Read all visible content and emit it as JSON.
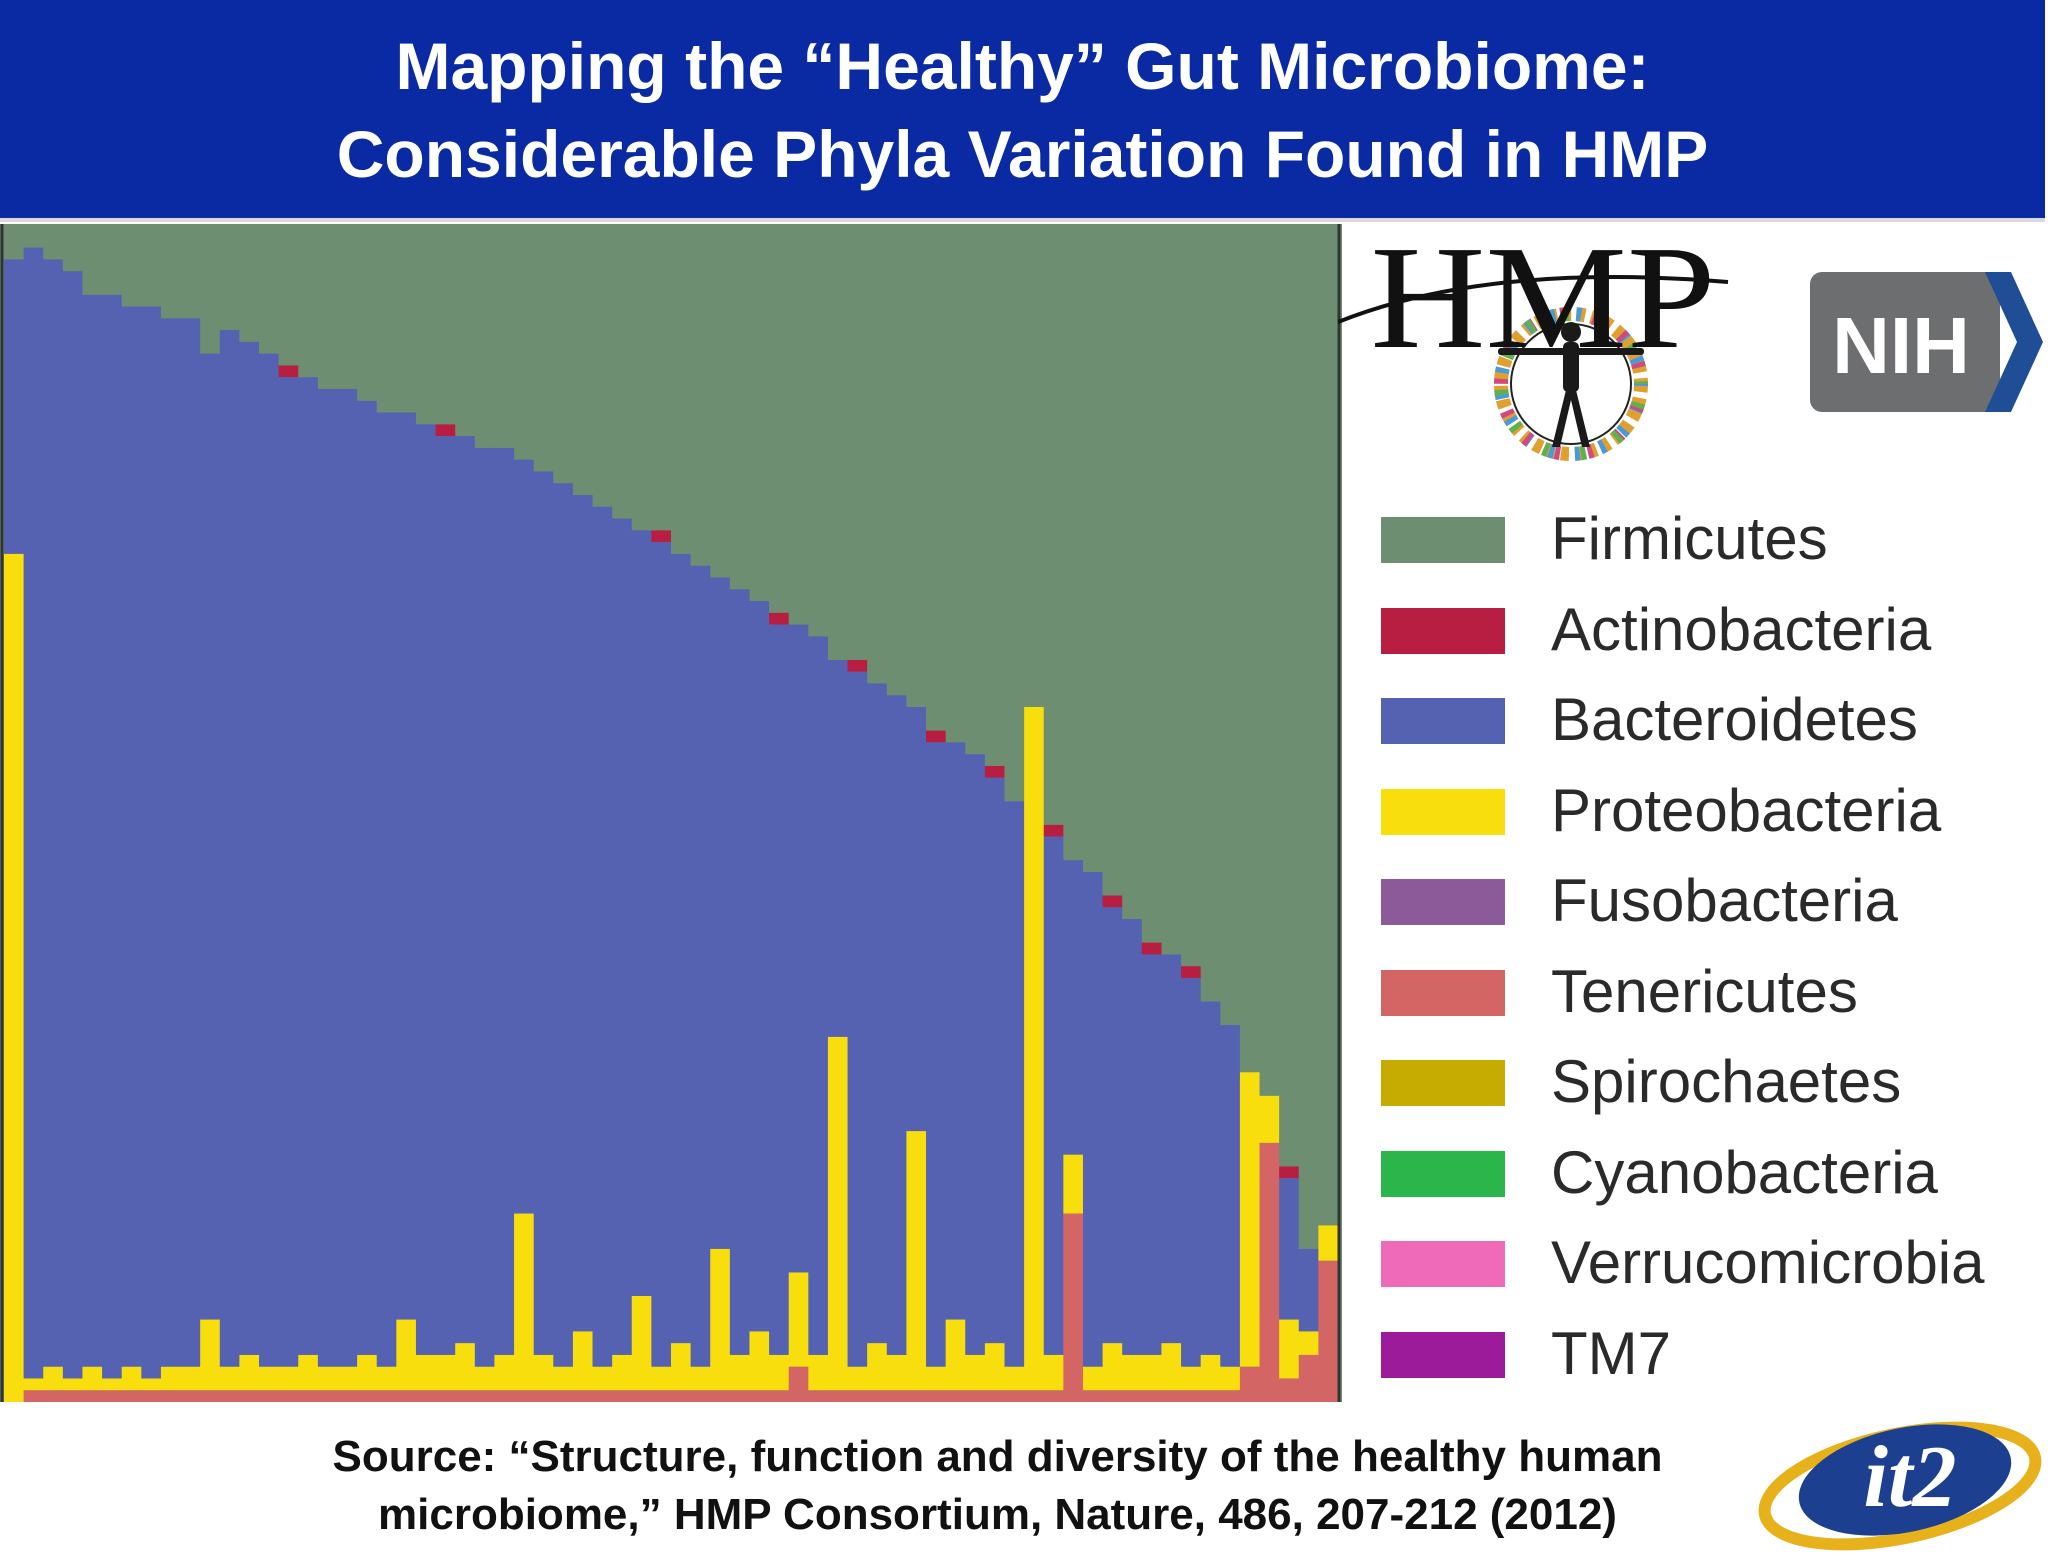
{
  "header": {
    "title_line1": "Mapping the “Healthy” Gut Microbiome:",
    "title_line2": "Considerable Phyla Variation Found in HMP"
  },
  "colors": {
    "banner": "#0a2aa3",
    "Firmicutes": "#6e8e72",
    "Actinobacteria": "#b81d42",
    "Bacteroidetes": "#5562b2",
    "Proteobacteria": "#f7de0c",
    "Fusobacteria": "#8c5a98",
    "Tenericutes": "#d46565",
    "Spirochaetes": "#c6ac00",
    "Cyanobacteria": "#2bb54a",
    "Verrucomicrobia": "#f06aba",
    "TM7": "#9b1b9a"
  },
  "logos": {
    "hmp": "HMP",
    "nih": "NIH",
    "it2": "it2"
  },
  "legend": [
    {
      "name": "Firmicutes",
      "color": "#6e8e72"
    },
    {
      "name": "Actinobacteria",
      "color": "#b81d42"
    },
    {
      "name": "Bacteroidetes",
      "color": "#5562b2"
    },
    {
      "name": "Proteobacteria",
      "color": "#f7de0c"
    },
    {
      "name": "Fusobacteria",
      "color": "#8c5a98"
    },
    {
      "name": "Tenericutes",
      "color": "#d46565"
    },
    {
      "name": "Spirochaetes",
      "color": "#c6ac00"
    },
    {
      "name": "Cyanobacteria",
      "color": "#2bb54a"
    },
    {
      "name": "Verrucomicrobia",
      "color": "#f06aba"
    },
    {
      "name": "TM7",
      "color": "#9b1b9a"
    }
  ],
  "chart_data": {
    "type": "bar",
    "stacked": true,
    "normalized": true,
    "legend_position": "right",
    "axes_visible": false,
    "series_order_bottom_to_top": [
      "Tenericutes",
      "Proteobacteria",
      "Bacteroidetes",
      "Actinobacteria",
      "Firmicutes"
    ],
    "samples": [
      {
        "Tenericutes": 0.0,
        "Proteobacteria": 0.72,
        "Bacteroidetes": 0.25,
        "Actinobacteria": 0.0,
        "Firmicutes": 0.03
      },
      {
        "Tenericutes": 0.01,
        "Proteobacteria": 0.01,
        "Bacteroidetes": 0.96,
        "Actinobacteria": 0.0,
        "Firmicutes": 0.02
      },
      {
        "Tenericutes": 0.01,
        "Proteobacteria": 0.02,
        "Bacteroidetes": 0.94,
        "Actinobacteria": 0.0,
        "Firmicutes": 0.03
      },
      {
        "Tenericutes": 0.01,
        "Proteobacteria": 0.01,
        "Bacteroidetes": 0.94,
        "Actinobacteria": 0.0,
        "Firmicutes": 0.04
      },
      {
        "Tenericutes": 0.01,
        "Proteobacteria": 0.02,
        "Bacteroidetes": 0.91,
        "Actinobacteria": 0.0,
        "Firmicutes": 0.06
      },
      {
        "Tenericutes": 0.01,
        "Proteobacteria": 0.01,
        "Bacteroidetes": 0.92,
        "Actinobacteria": 0.0,
        "Firmicutes": 0.06
      },
      {
        "Tenericutes": 0.01,
        "Proteobacteria": 0.02,
        "Bacteroidetes": 0.9,
        "Actinobacteria": 0.0,
        "Firmicutes": 0.07
      },
      {
        "Tenericutes": 0.01,
        "Proteobacteria": 0.01,
        "Bacteroidetes": 0.91,
        "Actinobacteria": 0.0,
        "Firmicutes": 0.07
      },
      {
        "Tenericutes": 0.01,
        "Proteobacteria": 0.02,
        "Bacteroidetes": 0.89,
        "Actinobacteria": 0.0,
        "Firmicutes": 0.08
      },
      {
        "Tenericutes": 0.01,
        "Proteobacteria": 0.02,
        "Bacteroidetes": 0.89,
        "Actinobacteria": 0.0,
        "Firmicutes": 0.08
      },
      {
        "Tenericutes": 0.01,
        "Proteobacteria": 0.06,
        "Bacteroidetes": 0.82,
        "Actinobacteria": 0.0,
        "Firmicutes": 0.11
      },
      {
        "Tenericutes": 0.01,
        "Proteobacteria": 0.02,
        "Bacteroidetes": 0.88,
        "Actinobacteria": 0.0,
        "Firmicutes": 0.09
      },
      {
        "Tenericutes": 0.01,
        "Proteobacteria": 0.03,
        "Bacteroidetes": 0.86,
        "Actinobacteria": 0.0,
        "Firmicutes": 0.1
      },
      {
        "Tenericutes": 0.01,
        "Proteobacteria": 0.02,
        "Bacteroidetes": 0.86,
        "Actinobacteria": 0.0,
        "Firmicutes": 0.11
      },
      {
        "Tenericutes": 0.01,
        "Proteobacteria": 0.02,
        "Bacteroidetes": 0.84,
        "Actinobacteria": 0.01,
        "Firmicutes": 0.12
      },
      {
        "Tenericutes": 0.01,
        "Proteobacteria": 0.03,
        "Bacteroidetes": 0.83,
        "Actinobacteria": 0.0,
        "Firmicutes": 0.13
      },
      {
        "Tenericutes": 0.01,
        "Proteobacteria": 0.02,
        "Bacteroidetes": 0.83,
        "Actinobacteria": 0.0,
        "Firmicutes": 0.14
      },
      {
        "Tenericutes": 0.01,
        "Proteobacteria": 0.02,
        "Bacteroidetes": 0.83,
        "Actinobacteria": 0.0,
        "Firmicutes": 0.14
      },
      {
        "Tenericutes": 0.01,
        "Proteobacteria": 0.03,
        "Bacteroidetes": 0.81,
        "Actinobacteria": 0.0,
        "Firmicutes": 0.15
      },
      {
        "Tenericutes": 0.01,
        "Proteobacteria": 0.02,
        "Bacteroidetes": 0.81,
        "Actinobacteria": 0.0,
        "Firmicutes": 0.16
      },
      {
        "Tenericutes": 0.01,
        "Proteobacteria": 0.06,
        "Bacteroidetes": 0.77,
        "Actinobacteria": 0.0,
        "Firmicutes": 0.16
      },
      {
        "Tenericutes": 0.01,
        "Proteobacteria": 0.03,
        "Bacteroidetes": 0.79,
        "Actinobacteria": 0.0,
        "Firmicutes": 0.17
      },
      {
        "Tenericutes": 0.01,
        "Proteobacteria": 0.03,
        "Bacteroidetes": 0.78,
        "Actinobacteria": 0.01,
        "Firmicutes": 0.17
      },
      {
        "Tenericutes": 0.01,
        "Proteobacteria": 0.04,
        "Bacteroidetes": 0.77,
        "Actinobacteria": 0.0,
        "Firmicutes": 0.18
      },
      {
        "Tenericutes": 0.01,
        "Proteobacteria": 0.02,
        "Bacteroidetes": 0.78,
        "Actinobacteria": 0.0,
        "Firmicutes": 0.19
      },
      {
        "Tenericutes": 0.01,
        "Proteobacteria": 0.03,
        "Bacteroidetes": 0.77,
        "Actinobacteria": 0.0,
        "Firmicutes": 0.19
      },
      {
        "Tenericutes": 0.01,
        "Proteobacteria": 0.15,
        "Bacteroidetes": 0.64,
        "Actinobacteria": 0.0,
        "Firmicutes": 0.2
      },
      {
        "Tenericutes": 0.01,
        "Proteobacteria": 0.03,
        "Bacteroidetes": 0.75,
        "Actinobacteria": 0.0,
        "Firmicutes": 0.21
      },
      {
        "Tenericutes": 0.01,
        "Proteobacteria": 0.02,
        "Bacteroidetes": 0.75,
        "Actinobacteria": 0.0,
        "Firmicutes": 0.22
      },
      {
        "Tenericutes": 0.01,
        "Proteobacteria": 0.05,
        "Bacteroidetes": 0.71,
        "Actinobacteria": 0.0,
        "Firmicutes": 0.23
      },
      {
        "Tenericutes": 0.01,
        "Proteobacteria": 0.02,
        "Bacteroidetes": 0.73,
        "Actinobacteria": 0.0,
        "Firmicutes": 0.24
      },
      {
        "Tenericutes": 0.01,
        "Proteobacteria": 0.03,
        "Bacteroidetes": 0.71,
        "Actinobacteria": 0.0,
        "Firmicutes": 0.25
      },
      {
        "Tenericutes": 0.01,
        "Proteobacteria": 0.08,
        "Bacteroidetes": 0.65,
        "Actinobacteria": 0.0,
        "Firmicutes": 0.26
      },
      {
        "Tenericutes": 0.01,
        "Proteobacteria": 0.02,
        "Bacteroidetes": 0.7,
        "Actinobacteria": 0.01,
        "Firmicutes": 0.26
      },
      {
        "Tenericutes": 0.01,
        "Proteobacteria": 0.04,
        "Bacteroidetes": 0.67,
        "Actinobacteria": 0.0,
        "Firmicutes": 0.28
      },
      {
        "Tenericutes": 0.01,
        "Proteobacteria": 0.02,
        "Bacteroidetes": 0.68,
        "Actinobacteria": 0.0,
        "Firmicutes": 0.29
      },
      {
        "Tenericutes": 0.01,
        "Proteobacteria": 0.12,
        "Bacteroidetes": 0.57,
        "Actinobacteria": 0.0,
        "Firmicutes": 0.3
      },
      {
        "Tenericutes": 0.01,
        "Proteobacteria": 0.03,
        "Bacteroidetes": 0.65,
        "Actinobacteria": 0.0,
        "Firmicutes": 0.31
      },
      {
        "Tenericutes": 0.01,
        "Proteobacteria": 0.05,
        "Bacteroidetes": 0.62,
        "Actinobacteria": 0.0,
        "Firmicutes": 0.32
      },
      {
        "Tenericutes": 0.01,
        "Proteobacteria": 0.03,
        "Bacteroidetes": 0.62,
        "Actinobacteria": 0.01,
        "Firmicutes": 0.33
      },
      {
        "Tenericutes": 0.03,
        "Proteobacteria": 0.08,
        "Bacteroidetes": 0.55,
        "Actinobacteria": 0.0,
        "Firmicutes": 0.34
      },
      {
        "Tenericutes": 0.01,
        "Proteobacteria": 0.03,
        "Bacteroidetes": 0.61,
        "Actinobacteria": 0.0,
        "Firmicutes": 0.35
      },
      {
        "Tenericutes": 0.01,
        "Proteobacteria": 0.3,
        "Bacteroidetes": 0.32,
        "Actinobacteria": 0.0,
        "Firmicutes": 0.37
      },
      {
        "Tenericutes": 0.01,
        "Proteobacteria": 0.02,
        "Bacteroidetes": 0.59,
        "Actinobacteria": 0.01,
        "Firmicutes": 0.37
      },
      {
        "Tenericutes": 0.01,
        "Proteobacteria": 0.04,
        "Bacteroidetes": 0.56,
        "Actinobacteria": 0.0,
        "Firmicutes": 0.39
      },
      {
        "Tenericutes": 0.01,
        "Proteobacteria": 0.03,
        "Bacteroidetes": 0.56,
        "Actinobacteria": 0.0,
        "Firmicutes": 0.4
      },
      {
        "Tenericutes": 0.01,
        "Proteobacteria": 0.22,
        "Bacteroidetes": 0.36,
        "Actinobacteria": 0.0,
        "Firmicutes": 0.41
      },
      {
        "Tenericutes": 0.01,
        "Proteobacteria": 0.02,
        "Bacteroidetes": 0.53,
        "Actinobacteria": 0.01,
        "Firmicutes": 0.43
      },
      {
        "Tenericutes": 0.01,
        "Proteobacteria": 0.06,
        "Bacteroidetes": 0.49,
        "Actinobacteria": 0.0,
        "Firmicutes": 0.44
      },
      {
        "Tenericutes": 0.01,
        "Proteobacteria": 0.03,
        "Bacteroidetes": 0.51,
        "Actinobacteria": 0.0,
        "Firmicutes": 0.45
      },
      {
        "Tenericutes": 0.01,
        "Proteobacteria": 0.04,
        "Bacteroidetes": 0.48,
        "Actinobacteria": 0.01,
        "Firmicutes": 0.46
      },
      {
        "Tenericutes": 0.01,
        "Proteobacteria": 0.02,
        "Bacteroidetes": 0.48,
        "Actinobacteria": 0.0,
        "Firmicutes": 0.49
      },
      {
        "Tenericutes": 0.01,
        "Proteobacteria": 0.58,
        "Bacteroidetes": 0.0,
        "Actinobacteria": 0.0,
        "Firmicutes": 0.41
      },
      {
        "Tenericutes": 0.01,
        "Proteobacteria": 0.03,
        "Bacteroidetes": 0.44,
        "Actinobacteria": 0.01,
        "Firmicutes": 0.51
      },
      {
        "Tenericutes": 0.16,
        "Proteobacteria": 0.05,
        "Bacteroidetes": 0.25,
        "Actinobacteria": 0.0,
        "Firmicutes": 0.54
      },
      {
        "Tenericutes": 0.01,
        "Proteobacteria": 0.02,
        "Bacteroidetes": 0.42,
        "Actinobacteria": 0.0,
        "Firmicutes": 0.55
      },
      {
        "Tenericutes": 0.01,
        "Proteobacteria": 0.04,
        "Bacteroidetes": 0.37,
        "Actinobacteria": 0.01,
        "Firmicutes": 0.57
      },
      {
        "Tenericutes": 0.01,
        "Proteobacteria": 0.03,
        "Bacteroidetes": 0.37,
        "Actinobacteria": 0.0,
        "Firmicutes": 0.59
      },
      {
        "Tenericutes": 0.01,
        "Proteobacteria": 0.03,
        "Bacteroidetes": 0.34,
        "Actinobacteria": 0.01,
        "Firmicutes": 0.61
      },
      {
        "Tenericutes": 0.01,
        "Proteobacteria": 0.04,
        "Bacteroidetes": 0.33,
        "Actinobacteria": 0.0,
        "Firmicutes": 0.62
      },
      {
        "Tenericutes": 0.01,
        "Proteobacteria": 0.02,
        "Bacteroidetes": 0.33,
        "Actinobacteria": 0.01,
        "Firmicutes": 0.63
      },
      {
        "Tenericutes": 0.01,
        "Proteobacteria": 0.03,
        "Bacteroidetes": 0.3,
        "Actinobacteria": 0.0,
        "Firmicutes": 0.66
      },
      {
        "Tenericutes": 0.01,
        "Proteobacteria": 0.02,
        "Bacteroidetes": 0.29,
        "Actinobacteria": 0.0,
        "Firmicutes": 0.68
      },
      {
        "Tenericutes": 0.03,
        "Proteobacteria": 0.25,
        "Bacteroidetes": 0.0,
        "Actinobacteria": 0.0,
        "Firmicutes": 0.72
      },
      {
        "Tenericutes": 0.22,
        "Proteobacteria": 0.04,
        "Bacteroidetes": 0.0,
        "Actinobacteria": 0.0,
        "Firmicutes": 0.74
      },
      {
        "Tenericutes": 0.02,
        "Proteobacteria": 0.05,
        "Bacteroidetes": 0.12,
        "Actinobacteria": 0.01,
        "Firmicutes": 0.8
      },
      {
        "Tenericutes": 0.04,
        "Proteobacteria": 0.02,
        "Bacteroidetes": 0.07,
        "Actinobacteria": 0.0,
        "Firmicutes": 0.87
      },
      {
        "Tenericutes": 0.12,
        "Proteobacteria": 0.03,
        "Bacteroidetes": 0.0,
        "Actinobacteria": 0.0,
        "Firmicutes": 0.85
      }
    ]
  },
  "source": {
    "line1": "Source: “Structure, function and diversity of the healthy human",
    "line2": "microbiome,” HMP Consortium, Nature, 486, 207-212 (2012)"
  }
}
